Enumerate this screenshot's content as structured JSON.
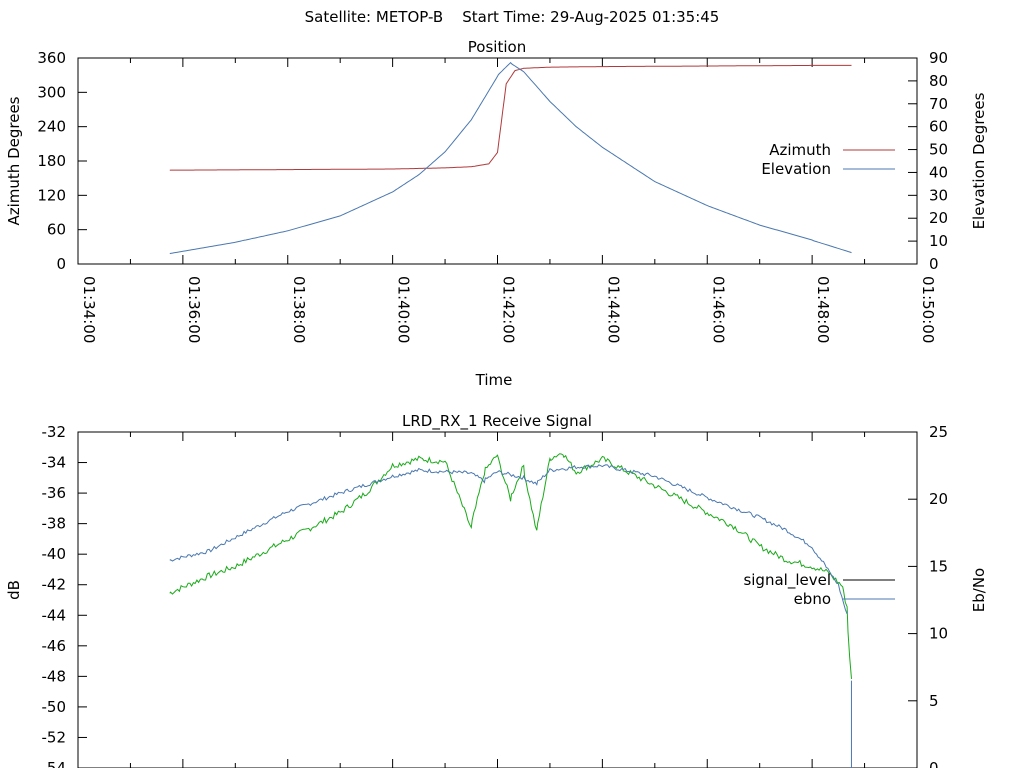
{
  "header": {
    "title": "Satellite: METOP-B    Start Time: 29-Aug-2025 01:35:45"
  },
  "colors": {
    "azimuth": "#b03a3a",
    "elevation": "#4a78b0",
    "signal_level": "#000000",
    "ebno_line": "#4a78b0",
    "green_trace": "#1aaa1a"
  },
  "chart_data": [
    {
      "type": "line",
      "title": "Position",
      "xlabel": "Time",
      "ylabel": "Azimuth Degrees",
      "y2label": "Elevation Degrees",
      "x_ticks": [
        "01:34:00",
        "01:36:00",
        "01:38:00",
        "01:40:00",
        "01:42:00",
        "01:44:00",
        "01:46:00",
        "01:48:00",
        "01:50:00"
      ],
      "xlim": [
        "01:34:00",
        "01:50:00"
      ],
      "ylim": [
        0,
        360
      ],
      "y_ticks": [
        0,
        60,
        120,
        180,
        240,
        300,
        360
      ],
      "y2lim": [
        0,
        90
      ],
      "y2_ticks": [
        0,
        10,
        20,
        30,
        40,
        50,
        60,
        70,
        80,
        90
      ],
      "legend_position": "right",
      "series": [
        {
          "name": "Azimuth",
          "axis": "y",
          "x": [
            "01:35:45",
            "01:37:00",
            "01:38:00",
            "01:39:00",
            "01:40:00",
            "01:41:00",
            "01:41:30",
            "01:41:50",
            "01:42:00",
            "01:42:10",
            "01:42:20",
            "01:42:30",
            "01:43:00",
            "01:44:00",
            "01:45:00",
            "01:46:00",
            "01:47:00",
            "01:48:00",
            "01:48:45"
          ],
          "y": [
            164,
            164.5,
            165,
            165.5,
            166,
            168,
            170,
            175,
            195,
            315,
            338,
            342,
            344,
            345,
            345.5,
            346,
            346.5,
            347,
            347
          ]
        },
        {
          "name": "Elevation",
          "axis": "y2",
          "x": [
            "01:35:45",
            "01:36:30",
            "01:37:00",
            "01:38:00",
            "01:39:00",
            "01:40:00",
            "01:40:30",
            "01:41:00",
            "01:41:30",
            "01:42:00",
            "01:42:15",
            "01:42:30",
            "01:43:00",
            "01:43:30",
            "01:44:00",
            "01:45:00",
            "01:46:00",
            "01:47:00",
            "01:48:00",
            "01:48:45"
          ],
          "y": [
            4.5,
            7.5,
            9.5,
            14.5,
            21,
            31.5,
            39,
            49,
            63,
            82,
            88,
            84,
            71,
            60,
            51,
            36,
            25.5,
            17,
            10.5,
            5
          ]
        }
      ]
    },
    {
      "type": "line",
      "title": "LRD_RX_1 Receive Signal",
      "ylabel": "dB",
      "y2label": "Eb/No",
      "xlim": [
        "01:34:00",
        "01:50:00"
      ],
      "ylim": [
        -54,
        -32
      ],
      "y_ticks": [
        -54,
        -52,
        -50,
        -48,
        -46,
        -44,
        -42,
        -40,
        -38,
        -36,
        -34,
        -32
      ],
      "y2lim": [
        0,
        25
      ],
      "y2_ticks": [
        0,
        5,
        10,
        15,
        20,
        25
      ],
      "legend_position": "right",
      "series": [
        {
          "name": "signal_level",
          "axis": "y",
          "x": [
            "01:35:45",
            "01:36:30",
            "01:37:00",
            "01:38:00",
            "01:39:00",
            "01:40:00",
            "01:40:30",
            "01:41:00",
            "01:41:30",
            "01:41:45",
            "01:42:00",
            "01:42:30",
            "01:42:45",
            "01:43:00",
            "01:43:30",
            "01:44:00",
            "01:45:00",
            "01:45:30",
            "01:46:00",
            "01:47:00",
            "01:47:30",
            "01:48:00",
            "01:48:15",
            "01:48:30",
            "01:48:40"
          ],
          "y": [
            -40.4,
            -39.8,
            -38.9,
            -37.2,
            -36.0,
            -34.9,
            -34.5,
            -34.6,
            -34.7,
            -35.2,
            -34.6,
            -35.0,
            -35.4,
            -34.5,
            -34.3,
            -34.2,
            -34.9,
            -35.6,
            -36.3,
            -37.6,
            -38.4,
            -39.5,
            -40.7,
            -42.0,
            -44.0
          ]
        },
        {
          "name": "ebno",
          "axis": "y2",
          "x": [
            "01:35:45",
            "01:36:30",
            "01:37:00",
            "01:38:00",
            "01:39:00",
            "01:39:30",
            "01:40:00",
            "01:40:30",
            "01:41:00",
            "01:41:20",
            "01:41:30",
            "01:41:45",
            "01:42:00",
            "01:42:15",
            "01:42:30",
            "01:42:45",
            "01:43:00",
            "01:43:15",
            "01:43:30",
            "01:44:00",
            "01:44:30",
            "01:45:00",
            "01:46:00",
            "01:46:30",
            "01:47:00",
            "01:47:30",
            "01:48:00",
            "01:48:20",
            "01:48:35",
            "01:48:40",
            "01:48:45"
          ],
          "y": [
            13.0,
            14.3,
            15.0,
            17.0,
            19.0,
            20.5,
            22.5,
            23.0,
            22.8,
            19.5,
            17.8,
            22.0,
            23.3,
            20.0,
            22.5,
            17.5,
            23.0,
            23.5,
            22.0,
            23.0,
            22.0,
            21.0,
            19.0,
            18.0,
            16.5,
            15.5,
            15.0,
            14.5,
            13.5,
            12.0,
            6.5
          ]
        }
      ]
    }
  ]
}
